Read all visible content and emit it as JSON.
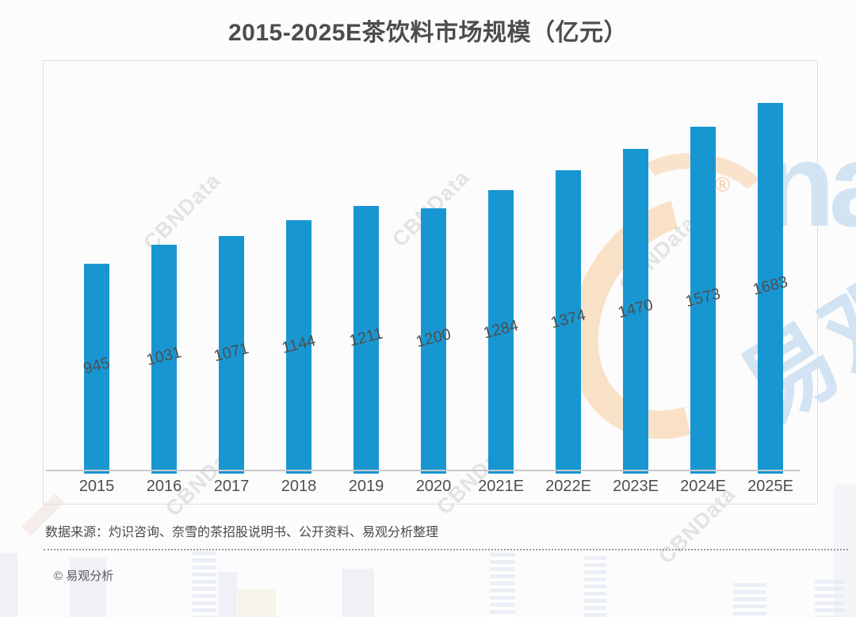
{
  "title": "2015-2025E茶饮料市场规模（亿元）",
  "chart_data": {
    "type": "bar",
    "title": "2015-2025E茶饮料市场规模（亿元）",
    "categories": [
      "2015",
      "2016",
      "2017",
      "2018",
      "2019",
      "2020",
      "2021E",
      "2022E",
      "2023E",
      "2024E",
      "2025E"
    ],
    "values": [
      945,
      1031,
      1071,
      1144,
      1211,
      1200,
      1284,
      1374,
      1470,
      1573,
      1683
    ],
    "unit": "亿元",
    "xlabel": "",
    "ylabel": "",
    "ylim": [
      0,
      1875
    ],
    "grid": false,
    "legend": null,
    "bar_color": "#1896d2",
    "value_label_rotation_deg": -14
  },
  "footer": {
    "source_note": "数据来源：灼识咨询、奈雪的茶招股说明书、公开资料、易观分析整理",
    "copyright": "© 易观分析"
  },
  "watermarks": {
    "cbndata_text": "CBNData",
    "analysys_latin": "na",
    "analysys_cn": "易观",
    "registered_symbol": "®"
  },
  "colors": {
    "bar": "#1896d2",
    "title_text": "#4d4d4d",
    "axis_text": "#4f4f4f",
    "frame_border": "#dedede",
    "axis_line": "#c9c9c9",
    "divider": "#9a9a9a",
    "watermark_orange": "#f6ca9c",
    "watermark_blue": "#64a0dc",
    "watermark_gray": "#828282"
  }
}
